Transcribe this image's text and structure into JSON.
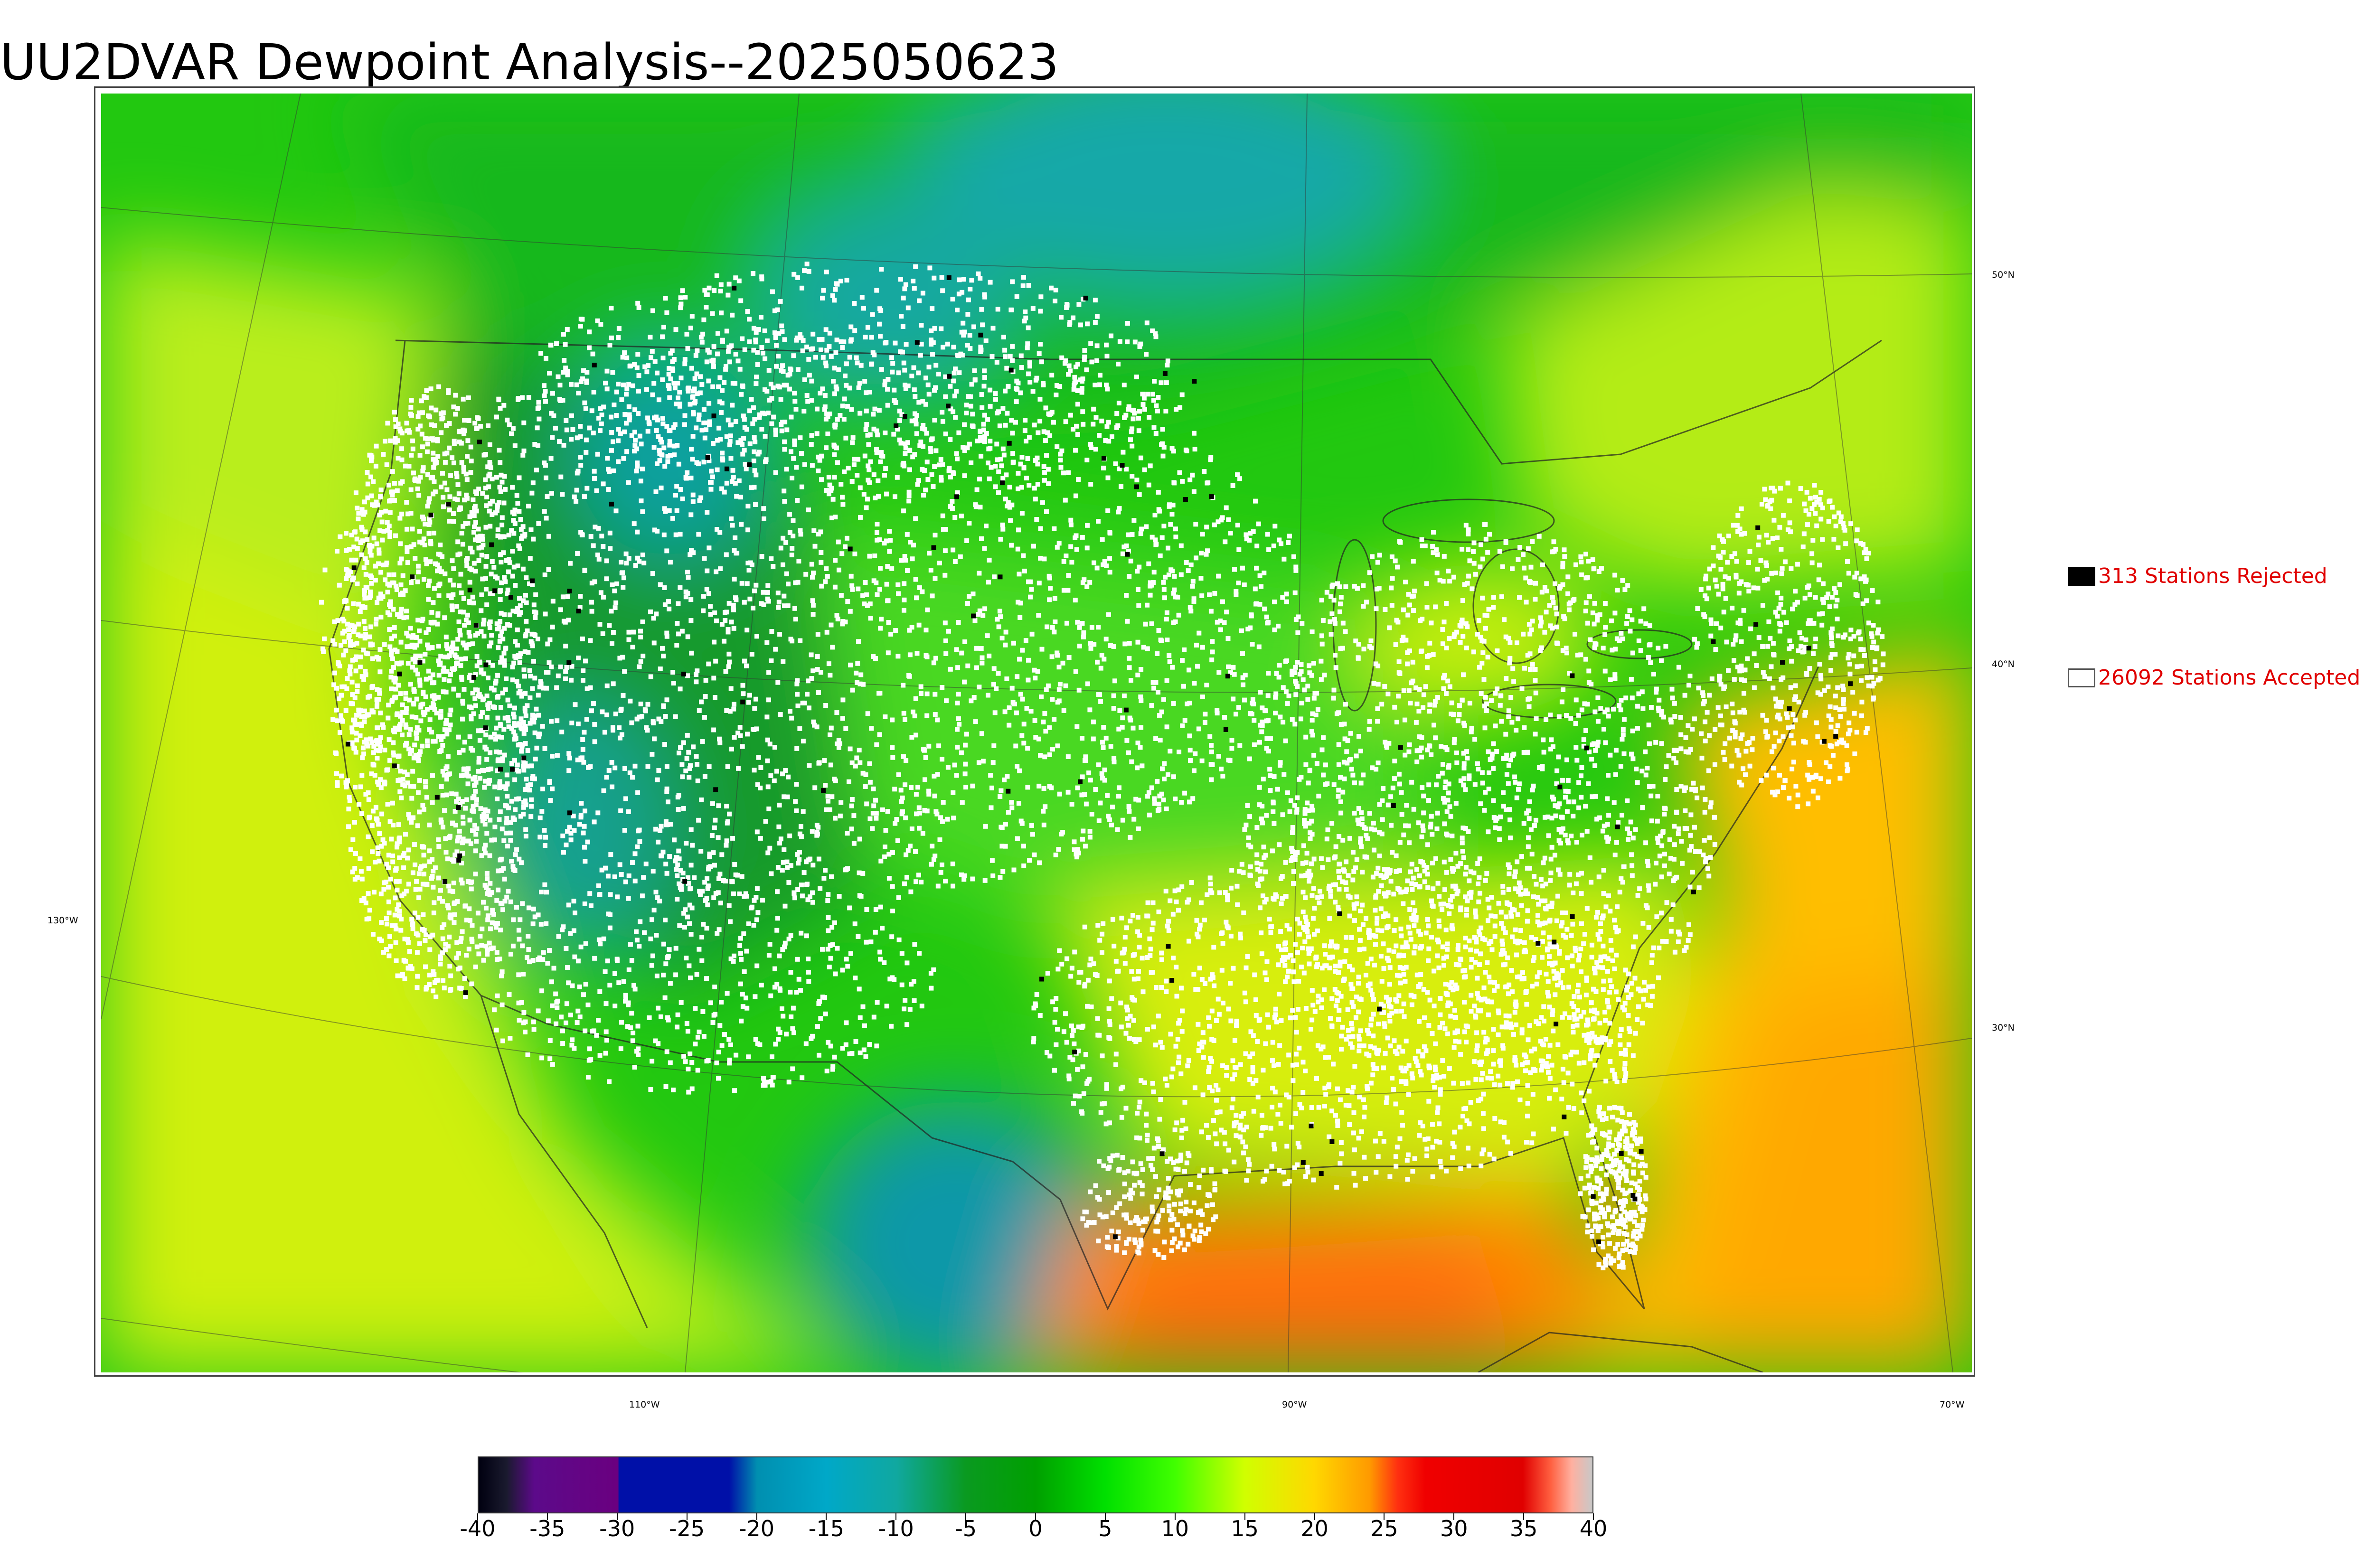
{
  "title": "UU2DVAR Dewpoint Analysis--2025050623",
  "legend": {
    "rejected": {
      "label": "313 Stations Rejected",
      "color": "#000000"
    },
    "accepted": {
      "label": "26092 Stations Accepted",
      "color": "#ffffff"
    }
  },
  "graticule_labels": {
    "lat_50": "50°N",
    "lat_40": "40°N",
    "lat_30": "30°N",
    "lon_130": "130°W",
    "lon_110": "110°W",
    "lon_90": "90°W",
    "lon_70": "70°W"
  },
  "colorbar": {
    "min": -40,
    "max": 40,
    "tick_labels": [
      "-40",
      "-35",
      "-30",
      "-25",
      "-20",
      "-15",
      "-10",
      "-5",
      "0",
      "5",
      "10",
      "15",
      "20",
      "25",
      "30",
      "35",
      "40"
    ],
    "stops": [
      {
        "value": -40,
        "color": "#000010"
      },
      {
        "value": -38,
        "color": "#1a1a2e"
      },
      {
        "value": -36,
        "color": "#5c0a8a"
      },
      {
        "value": -30,
        "color": "#6a0080"
      },
      {
        "value": -29.9,
        "color": "#0010a8"
      },
      {
        "value": -22,
        "color": "#0010a8"
      },
      {
        "value": -20,
        "color": "#008fb0"
      },
      {
        "value": -15,
        "color": "#00a8c8"
      },
      {
        "value": -10,
        "color": "#10a8a0"
      },
      {
        "value": -5,
        "color": "#0a9a20"
      },
      {
        "value": 0,
        "color": "#00a000"
      },
      {
        "value": 5,
        "color": "#00e000"
      },
      {
        "value": 10,
        "color": "#40ff00"
      },
      {
        "value": 15,
        "color": "#d0ff00"
      },
      {
        "value": 20,
        "color": "#ffd800"
      },
      {
        "value": 24,
        "color": "#ff9a00"
      },
      {
        "value": 26,
        "color": "#ff3010"
      },
      {
        "value": 28,
        "color": "#f00000"
      },
      {
        "value": 35,
        "color": "#e00000"
      },
      {
        "value": 37,
        "color": "#ff6040"
      },
      {
        "value": 38.5,
        "color": "#ffb0a0"
      },
      {
        "value": 40,
        "color": "#c8c8c8"
      }
    ]
  },
  "colors": {
    "ocean_pacific": "#b8ef20",
    "ocean_gulf": "#ff9000",
    "ocean_atlantic": "#ffc000",
    "canada": "#20c010",
    "rockies": "#1c9a2a",
    "dry_sw": "#14a4a0",
    "plains": "#4bd820",
    "southeast": "#d8ef10"
  }
}
